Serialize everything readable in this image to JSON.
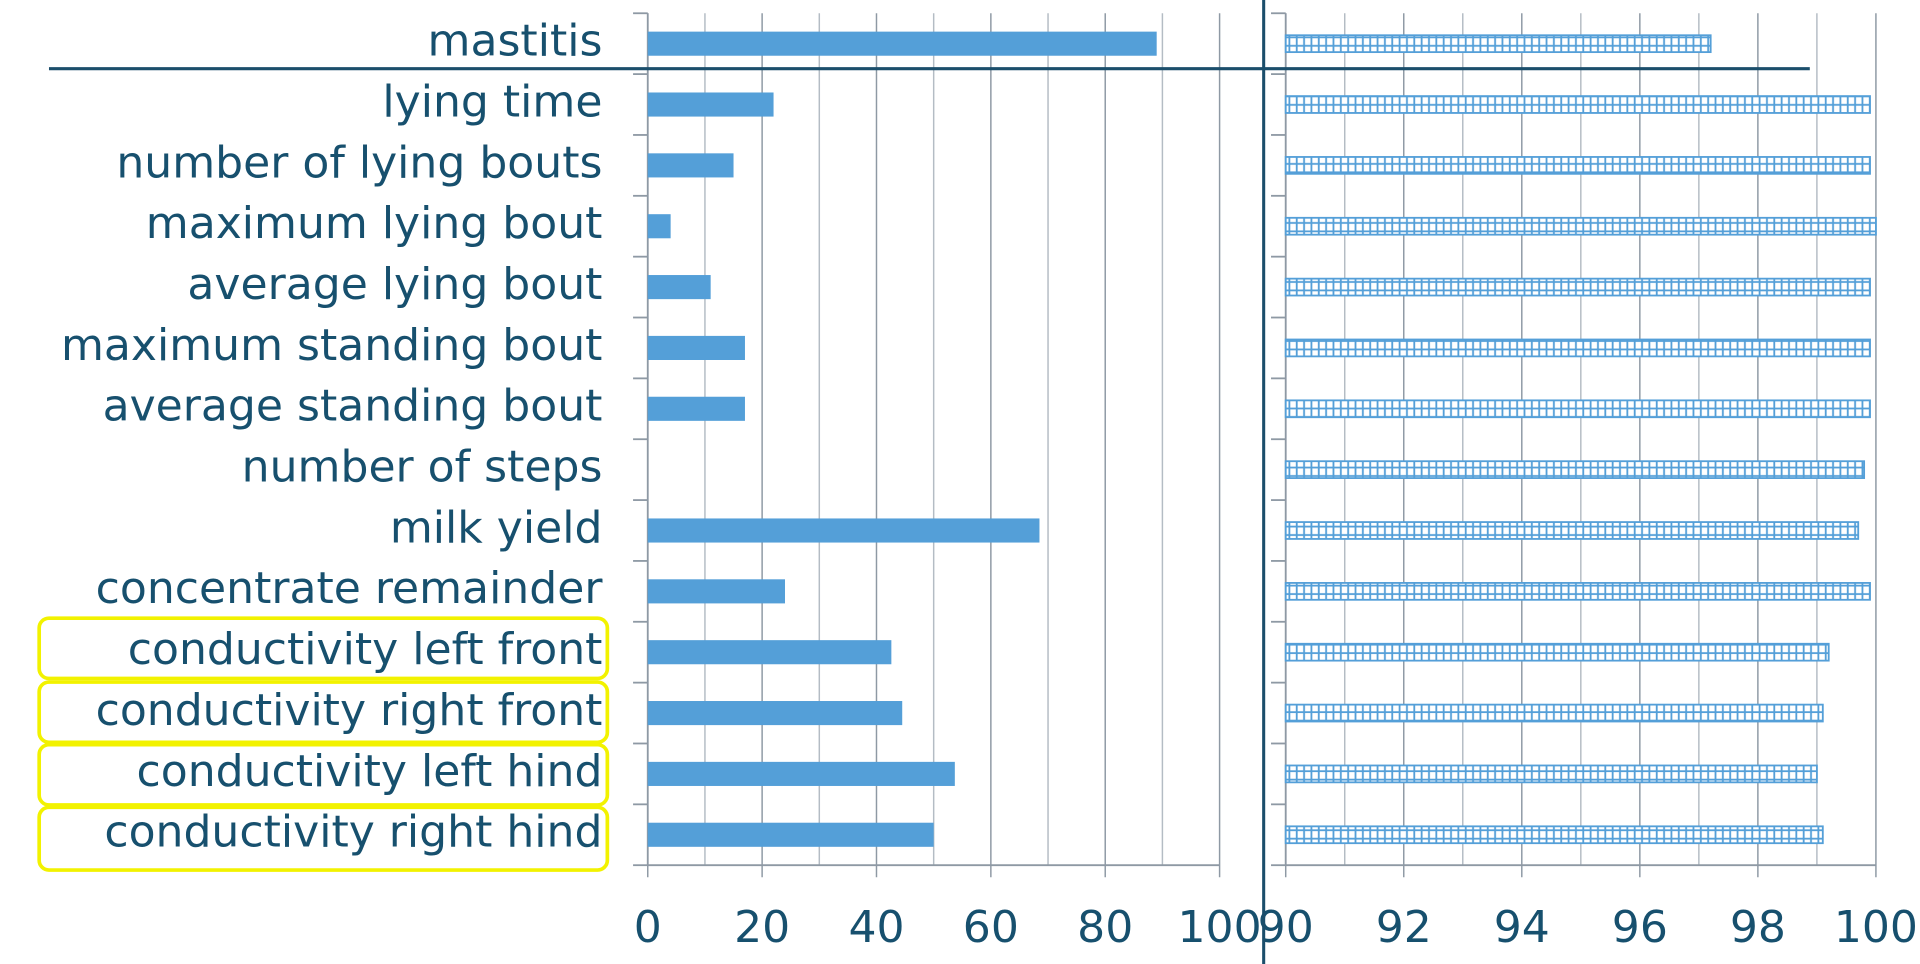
{
  "chart_data": [
    {
      "type": "bar",
      "orientation": "horizontal",
      "categories": [
        "mastitis",
        "lying time",
        "number of lying bouts",
        "maximum lying bout",
        "average lying bout",
        "maximum standing bout",
        "average standing bout",
        "number of steps",
        "milk yield",
        "concentrate remainder",
        "conductivity left front",
        "conductivity right front",
        "conductivity left hind",
        "conductivity right hind"
      ],
      "values": [
        89,
        22,
        15,
        4,
        11,
        17,
        17,
        null,
        68.5,
        24,
        42.6,
        44.5,
        53.7,
        50
      ],
      "color": "#549fd8",
      "hatch": false,
      "xlim": [
        0,
        100
      ],
      "xticks": [
        0,
        20,
        40,
        60,
        80,
        100
      ],
      "minor_xticks": [
        10,
        30,
        50,
        70,
        90
      ],
      "grid": true
    },
    {
      "type": "bar",
      "orientation": "horizontal",
      "values": [
        97.2,
        99.9,
        99.9,
        100,
        99.9,
        99.9,
        99.9,
        99.8,
        99.7,
        99.9,
        99.2,
        99.1,
        99.0,
        99.1
      ],
      "color": "#549fd8",
      "hatch": true,
      "xlim": [
        90,
        100
      ],
      "xticks": [
        90,
        92,
        94,
        96,
        98,
        100
      ],
      "minor_xticks": [
        91,
        93,
        95,
        97,
        99
      ],
      "grid": true
    }
  ]
}
